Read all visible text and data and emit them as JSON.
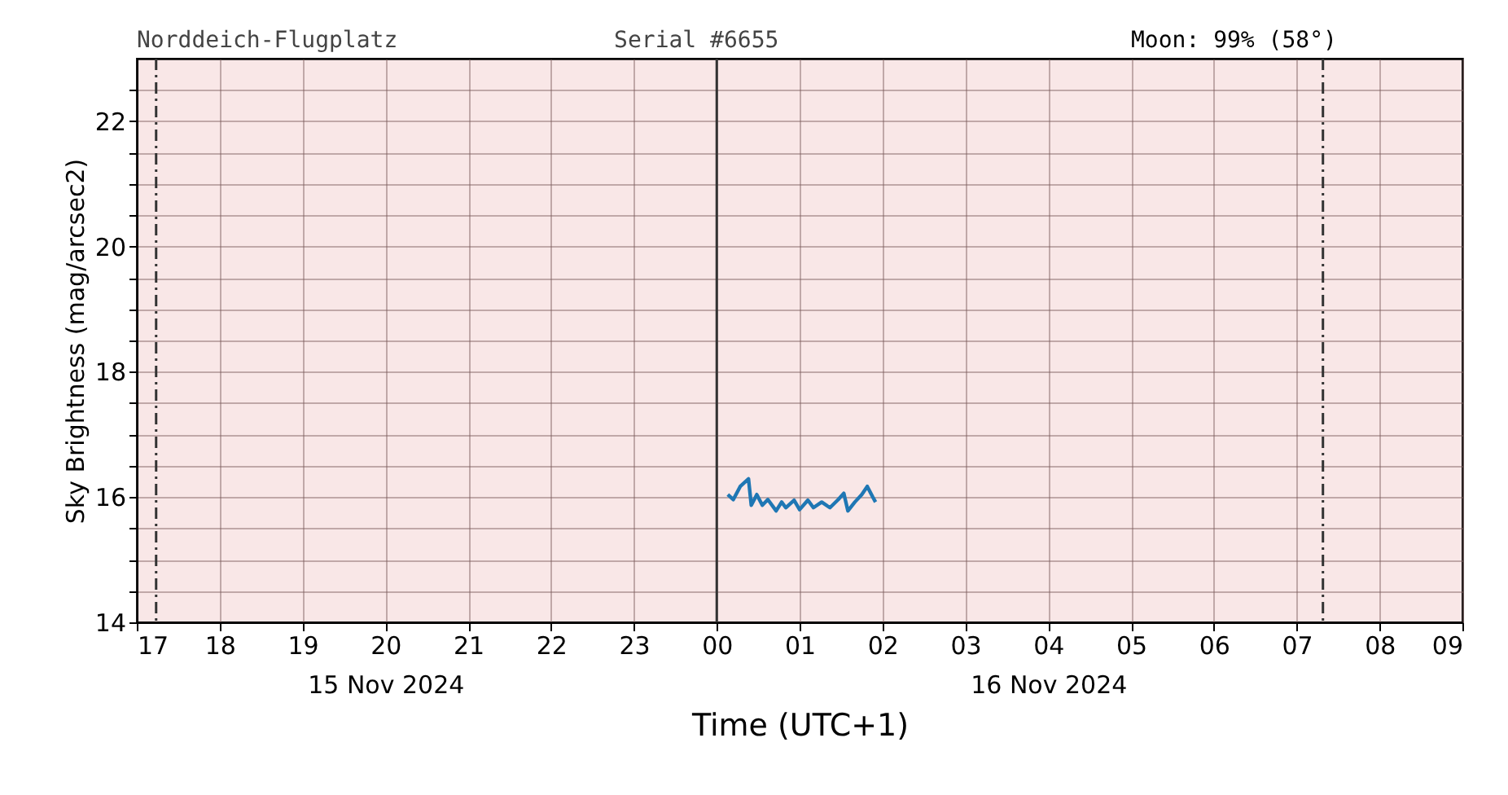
{
  "chart_data": {
    "type": "line",
    "title": "Norddeich-Flugplatz",
    "annotations": [
      "Serial #6655",
      "Moon: 99% (58°)"
    ],
    "xlabel": "Time (UTC+1)",
    "ylabel": "Sky Brightness (mag/arcsec2)",
    "xlim": [
      "2024-11-15T17:00",
      "2024-11-16T09:00"
    ],
    "xticks": [
      {
        "value": "2024-11-15T17:00",
        "label": "17"
      },
      {
        "value": "2024-11-15T18:00",
        "label": "18"
      },
      {
        "value": "2024-11-15T19:00",
        "label": "19"
      },
      {
        "value": "2024-11-15T20:00",
        "label": "20\n15 Nov 2024"
      },
      {
        "value": "2024-11-15T21:00",
        "label": "21"
      },
      {
        "value": "2024-11-15T22:00",
        "label": "22"
      },
      {
        "value": "2024-11-15T23:00",
        "label": "23"
      },
      {
        "value": "2024-11-16T00:00",
        "label": "00"
      },
      {
        "value": "2024-11-16T01:00",
        "label": "01"
      },
      {
        "value": "2024-11-16T02:00",
        "label": "02"
      },
      {
        "value": "2024-11-16T03:00",
        "label": "03"
      },
      {
        "value": "2024-11-16T04:00",
        "label": "04\n16 Nov 2024"
      },
      {
        "value": "2024-11-16T05:00",
        "label": "05"
      },
      {
        "value": "2024-11-16T06:00",
        "label": "06"
      },
      {
        "value": "2024-11-16T07:00",
        "label": "07"
      },
      {
        "value": "2024-11-16T08:00",
        "label": "08"
      },
      {
        "value": "2024-11-16T09:00",
        "label": "09"
      }
    ],
    "ylim": [
      14,
      23
    ],
    "yticks": [
      14,
      {
        "value": 14.5,
        "label": null
      },
      {
        "value": 15,
        "label": null
      },
      {
        "value": 15.5,
        "label": null
      },
      16,
      {
        "value": 16.5,
        "label": null
      },
      {
        "value": 17,
        "label": null
      },
      {
        "value": 17.5,
        "label": null
      },
      18,
      {
        "value": 18.5,
        "label": null
      },
      {
        "value": 19,
        "label": null
      },
      {
        "value": 19.5,
        "label": null
      },
      20,
      {
        "value": 20.5,
        "label": null
      },
      {
        "value": 21,
        "label": null
      },
      {
        "value": 21.5,
        "label": null
      },
      22,
      {
        "value": 22.5,
        "label": null
      }
    ],
    "grid": true,
    "marker": "none",
    "line_style": "solid",
    "ref_lines": [
      {
        "axis": "x",
        "value": "2024-11-15T17:14",
        "label": null,
        "color": "#333333",
        "line_style": "dashed"
      },
      {
        "axis": "x",
        "value": "2024-11-16T00:00",
        "label": null,
        "color": "#333333",
        "line_style": "solid"
      },
      {
        "axis": "x",
        "value": "2024-11-16T07:19",
        "label": null,
        "color": "#333333",
        "line_style": "dashed"
      }
    ],
    "series": [
      {
        "color": "#1f77b4",
        "x": [
          "2024-11-16T00:08",
          "2024-11-16T00:12",
          "2024-11-16T00:17",
          "2024-11-16T00:23",
          "2024-11-16T00:25",
          "2024-11-16T00:29",
          "2024-11-16T00:33",
          "2024-11-16T00:37",
          "2024-11-16T00:43",
          "2024-11-16T00:47",
          "2024-11-16T00:50",
          "2024-11-16T00:56",
          "2024-11-16T01:00",
          "2024-11-16T01:06",
          "2024-11-16T01:10",
          "2024-11-16T01:16",
          "2024-11-16T01:22",
          "2024-11-16T01:28",
          "2024-11-16T01:32",
          "2024-11-16T01:35",
          "2024-11-16T01:40",
          "2024-11-16T01:45",
          "2024-11-16T01:49",
          "2024-11-16T01:53",
          "2024-11-16T01:55"
        ],
        "values": [
          16.04,
          15.96,
          16.17,
          16.29,
          15.87,
          16.04,
          15.87,
          15.96,
          15.78,
          15.92,
          15.83,
          15.95,
          15.8,
          15.95,
          15.83,
          15.92,
          15.83,
          15.96,
          16.06,
          15.78,
          15.92,
          16.04,
          16.17,
          16.0,
          15.92
        ]
      }
    ]
  }
}
